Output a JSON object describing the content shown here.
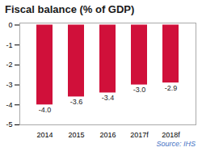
{
  "chart_data": {
    "type": "bar",
    "title": "Fiscal balance (% of GDP)",
    "categories": [
      "2014",
      "2015",
      "2016",
      "2017f",
      "2018f"
    ],
    "values": [
      -4.0,
      -3.6,
      -3.4,
      -3.0,
      -2.9
    ],
    "value_labels": [
      "-4.0",
      "-3.6",
      "-3.4",
      "-3.0",
      "-2.9"
    ],
    "data_labels": true,
    "color": "#d0103a",
    "ylim": [
      -5,
      0.1
    ],
    "yticks": [
      0,
      -1,
      -2,
      -3,
      -4,
      -5
    ],
    "grid": false,
    "annotations": [
      "Source: IHS"
    ]
  }
}
